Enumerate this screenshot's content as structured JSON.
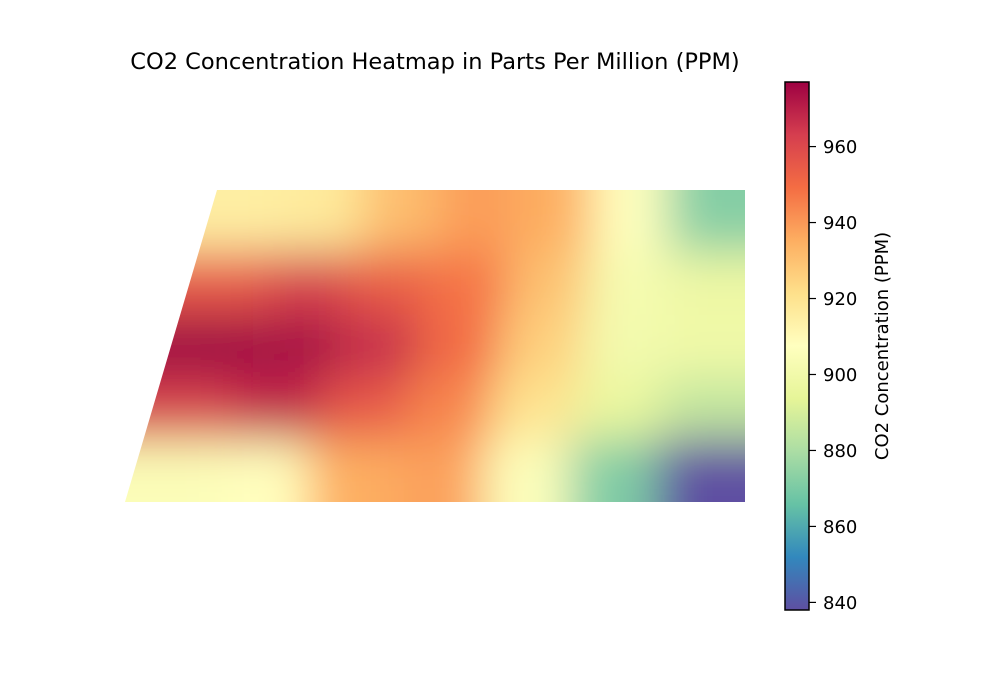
{
  "chart_data": {
    "type": "heatmap",
    "title": "CO2 Concentration Heatmap in Parts Per Million (PPM)",
    "grid": false,
    "axes_visible": false,
    "colormap": "Spectral_r",
    "colorbar": {
      "label": "CO2 Concentration (PPM)",
      "range": [
        838,
        977
      ],
      "ticks": [
        840,
        860,
        880,
        900,
        920,
        940,
        960
      ],
      "tick_labels": [
        "840",
        "860",
        "880",
        "900",
        "920",
        "940",
        "960"
      ]
    },
    "values": [
      [
        915,
        917,
        931,
        939,
        935,
        907,
        872
      ],
      [
        955,
        962,
        954,
        948,
        930,
        902,
        898
      ],
      [
        977,
        975,
        967,
        950,
        926,
        901,
        899
      ],
      [
        962,
        968,
        955,
        944,
        920,
        896,
        885
      ],
      [
        905,
        908,
        935,
        938,
        906,
        871,
        838
      ]
    ]
  }
}
